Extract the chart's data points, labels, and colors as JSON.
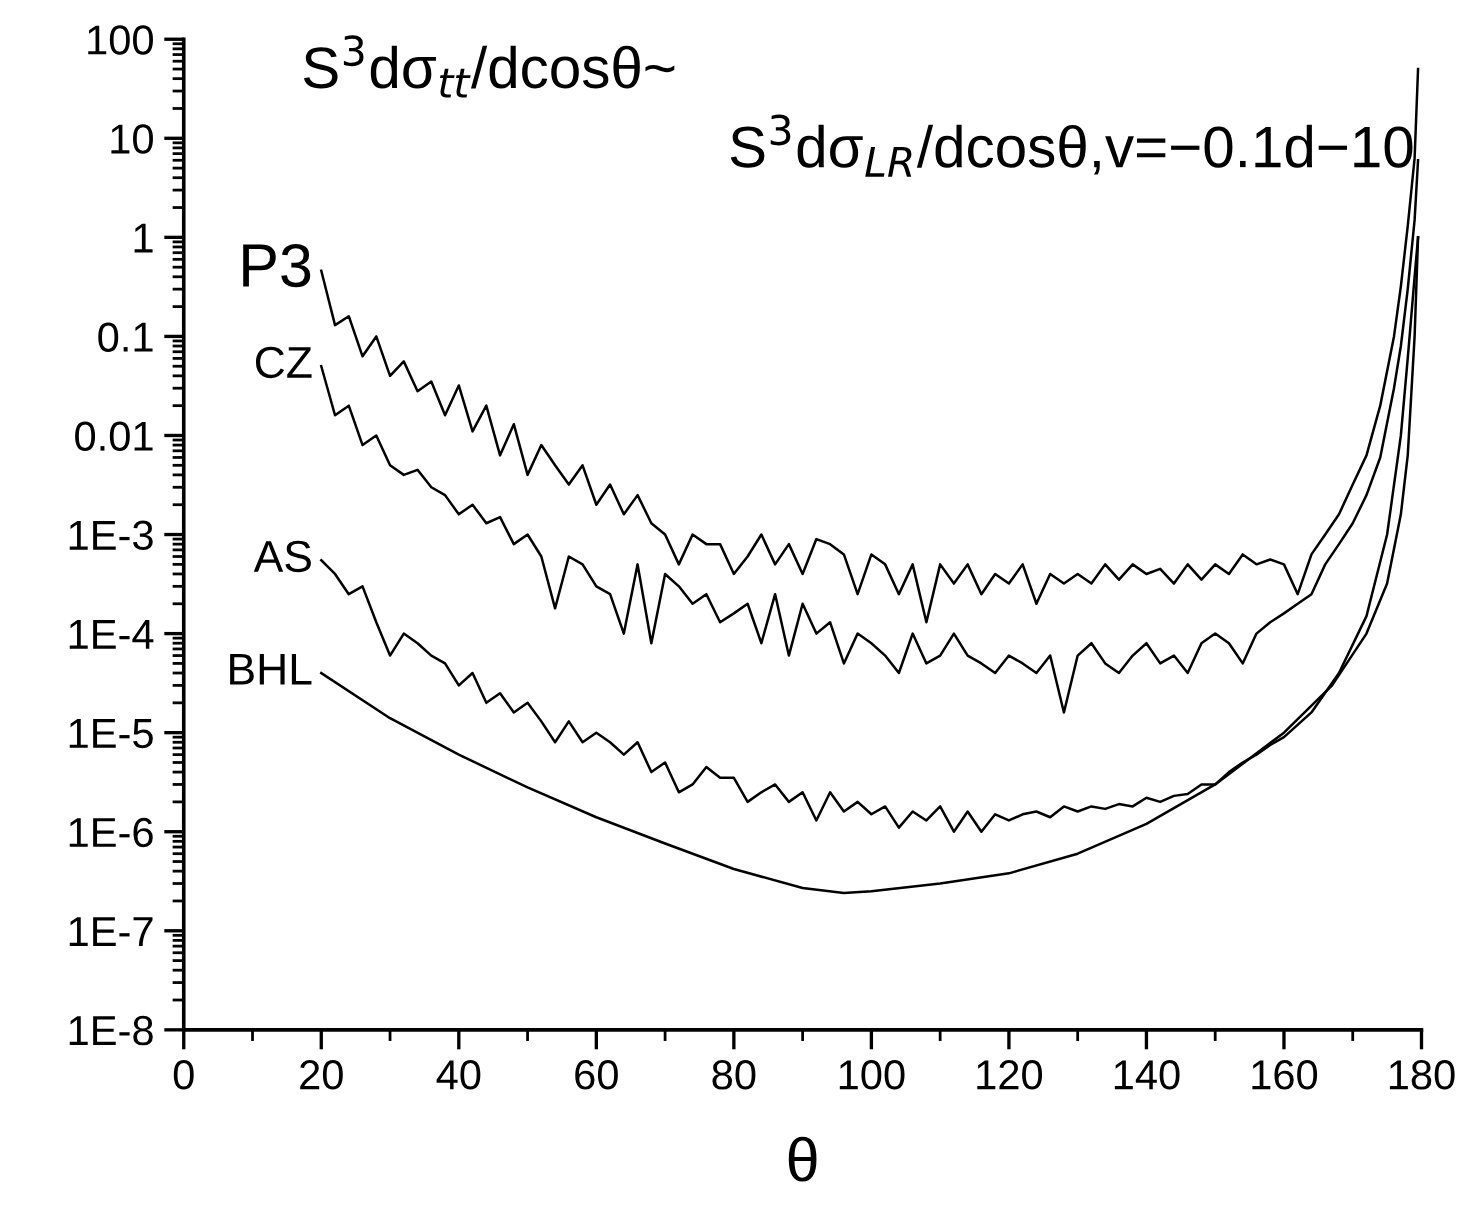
{
  "chart_data": {
    "type": "line",
    "xlabel": "θ",
    "log": "y",
    "annotations": [
      "S$^{3}$dσ$_{tt}$/dcosθ~",
      "S$^{3}$dσ$_{LR}$/dcosθ,v=−0.1d−10"
    ],
    "xlim": [
      0,
      180
    ],
    "xticks": [
      0,
      20,
      40,
      60,
      80,
      100,
      120,
      140,
      160,
      180
    ],
    "ylim": [
      1e-08,
      100
    ],
    "yticks": [
      100,
      10,
      1,
      0.1,
      0.01,
      {
        "value": 0.001,
        "label": "1E-3"
      },
      {
        "value": 0.0001,
        "label": "1E-4"
      },
      {
        "value": 1e-05,
        "label": "1E-5"
      },
      {
        "value": 1e-06,
        "label": "1E-6"
      },
      {
        "value": 1e-07,
        "label": "1E-7"
      },
      {
        "value": 1e-08,
        "label": "1E-8"
      }
    ],
    "marker": "none",
    "line_style": "solid",
    "series": [
      {
        "name": "P3",
        "color": "#000000",
        "x": [
          20,
          22,
          24,
          26,
          28,
          30,
          32,
          34,
          36,
          38,
          40,
          42,
          44,
          46,
          48,
          50,
          52,
          54,
          56,
          58,
          60,
          62,
          64,
          66,
          68,
          70,
          72,
          74,
          76,
          78,
          80,
          82,
          84,
          86,
          88,
          90,
          92,
          94,
          96,
          98,
          100,
          102,
          104,
          106,
          108,
          110,
          112,
          114,
          116,
          118,
          120,
          122,
          124,
          126,
          128,
          130,
          132,
          134,
          136,
          138,
          140,
          142,
          144,
          146,
          148,
          150,
          152,
          154,
          156,
          158,
          160,
          162,
          164,
          166,
          168,
          170,
          172,
          174,
          176,
          177,
          178,
          179,
          179.5
        ],
        "values": [
          0.46,
          0.13,
          0.16,
          0.063,
          0.1,
          0.04,
          0.056,
          0.028,
          0.035,
          0.016,
          0.032,
          0.011,
          0.02,
          0.0063,
          0.013,
          0.004,
          0.008,
          0.005,
          0.0032,
          0.005,
          0.002,
          0.0032,
          0.0016,
          0.0025,
          0.0013,
          0.001,
          0.0005,
          0.001,
          0.0008,
          0.0008,
          0.0004,
          0.0006,
          0.001,
          0.0005,
          0.0008,
          0.0004,
          0.0009,
          0.0008,
          0.00063,
          0.00025,
          0.00063,
          0.0005,
          0.00025,
          0.0005,
          0.00013,
          0.0005,
          0.00032,
          0.0005,
          0.00025,
          0.0004,
          0.00032,
          0.0005,
          0.0002,
          0.0004,
          0.00032,
          0.0004,
          0.00032,
          0.0005,
          0.00035,
          0.0005,
          0.0004,
          0.00045,
          0.00032,
          0.0005,
          0.00035,
          0.0005,
          0.0004,
          0.00063,
          0.0005,
          0.00056,
          0.0005,
          0.00025,
          0.00063,
          0.001,
          0.0016,
          0.0032,
          0.0063,
          0.02,
          0.1,
          0.32,
          1.3,
          6.3,
          50
        ]
      },
      {
        "name": "CZ",
        "color": "#000000",
        "x": [
          20,
          22,
          24,
          26,
          28,
          30,
          32,
          34,
          36,
          38,
          40,
          42,
          44,
          46,
          48,
          50,
          52,
          54,
          56,
          58,
          60,
          62,
          64,
          66,
          68,
          70,
          72,
          74,
          76,
          78,
          80,
          82,
          84,
          86,
          88,
          90,
          92,
          94,
          96,
          98,
          100,
          102,
          104,
          106,
          108,
          110,
          112,
          114,
          116,
          118,
          120,
          122,
          124,
          126,
          128,
          130,
          132,
          134,
          136,
          138,
          140,
          142,
          144,
          146,
          148,
          150,
          152,
          154,
          156,
          158,
          160,
          162,
          164,
          166,
          168,
          170,
          172,
          174,
          176,
          177,
          178,
          179,
          179.5
        ],
        "values": [
          0.05,
          0.016,
          0.02,
          0.008,
          0.01,
          0.005,
          0.004,
          0.0045,
          0.003,
          0.0025,
          0.0016,
          0.002,
          0.0013,
          0.0015,
          0.0008,
          0.001,
          0.0006,
          0.00018,
          0.0006,
          0.0005,
          0.0003,
          0.00025,
          0.0001,
          0.0005,
          8e-05,
          0.0004,
          0.0003,
          0.0002,
          0.00025,
          0.00013,
          0.00016,
          0.0002,
          8e-05,
          0.00025,
          6e-05,
          0.0002,
          0.0001,
          0.00013,
          5e-05,
          0.0001,
          8e-05,
          6e-05,
          4e-05,
          0.0001,
          5e-05,
          6e-05,
          0.0001,
          6e-05,
          5e-05,
          4e-05,
          6e-05,
          5e-05,
          4e-05,
          6e-05,
          1.6e-05,
          6e-05,
          8e-05,
          5e-05,
          4e-05,
          6e-05,
          8e-05,
          5e-05,
          6e-05,
          4e-05,
          8e-05,
          0.0001,
          8e-05,
          5e-05,
          0.0001,
          0.00013,
          0.00016,
          0.0002,
          0.00025,
          0.0005,
          0.0008,
          0.0013,
          0.0025,
          0.006,
          0.03,
          0.08,
          0.3,
          1.5,
          6
        ]
      },
      {
        "name": "AS",
        "color": "#000000",
        "x": [
          20,
          22,
          24,
          26,
          28,
          30,
          32,
          34,
          36,
          38,
          40,
          42,
          44,
          46,
          48,
          50,
          52,
          54,
          56,
          58,
          60,
          62,
          64,
          66,
          68,
          70,
          72,
          74,
          76,
          78,
          80,
          82,
          84,
          86,
          88,
          90,
          92,
          94,
          96,
          98,
          100,
          102,
          104,
          106,
          108,
          110,
          112,
          114,
          116,
          118,
          120,
          122,
          124,
          126,
          128,
          130,
          132,
          134,
          136,
          138,
          140,
          142,
          144,
          146,
          148,
          150,
          152,
          154,
          156,
          158,
          160,
          164,
          168,
          172,
          175,
          177,
          178,
          179,
          179.5
        ],
        "values": [
          0.00055,
          0.0004,
          0.00025,
          0.0003,
          0.00013,
          6e-05,
          0.0001,
          8e-05,
          6e-05,
          5e-05,
          3e-05,
          4e-05,
          2e-05,
          2.5e-05,
          1.6e-05,
          2e-05,
          1.3e-05,
          8e-06,
          1.3e-05,
          8e-06,
          1e-05,
          8e-06,
          6e-06,
          8e-06,
          4e-06,
          5e-06,
          2.5e-06,
          3e-06,
          4.5e-06,
          3.5e-06,
          3.5e-06,
          2e-06,
          2.5e-06,
          3e-06,
          2e-06,
          2.5e-06,
          1.3e-06,
          2.5e-06,
          1.6e-06,
          2e-06,
          1.5e-06,
          1.8e-06,
          1.1e-06,
          1.6e-06,
          1.3e-06,
          1.8e-06,
          1e-06,
          1.6e-06,
          1e-06,
          1.5e-06,
          1.3e-06,
          1.5e-06,
          1.6e-06,
          1.4e-06,
          1.8e-06,
          1.6e-06,
          1.8e-06,
          1.7e-06,
          1.9e-06,
          1.8e-06,
          2.2e-06,
          2e-06,
          2.3e-06,
          2.4e-06,
          3e-06,
          3e-06,
          4e-06,
          5e-06,
          6e-06,
          7.5e-06,
          9e-06,
          1.6e-05,
          4e-05,
          0.00015,
          0.001,
          0.01,
          0.06,
          0.4,
          1
        ]
      },
      {
        "name": "BHL",
        "color": "#000000",
        "x": [
          20,
          30,
          40,
          50,
          60,
          70,
          80,
          90,
          96,
          100,
          110,
          120,
          130,
          140,
          150,
          160,
          167,
          172,
          175,
          177,
          178,
          179,
          179.5
        ],
        "values": [
          4e-05,
          1.4e-05,
          6e-06,
          2.8e-06,
          1.4e-06,
          7.6e-07,
          4.2e-07,
          2.7e-07,
          2.4e-07,
          2.5e-07,
          3e-07,
          3.8e-07,
          6e-07,
          1.2e-06,
          3e-06,
          1e-05,
          3e-05,
          0.0001,
          0.00032,
          0.0016,
          0.0063,
          0.1,
          1
        ]
      }
    ]
  }
}
